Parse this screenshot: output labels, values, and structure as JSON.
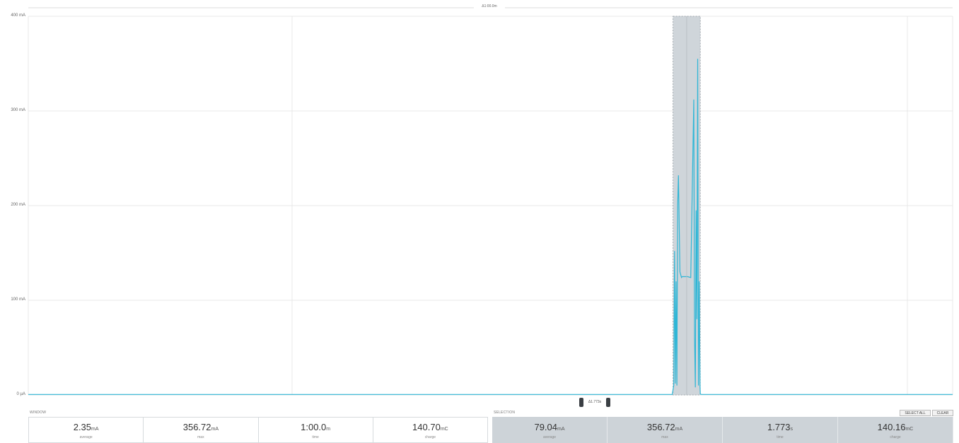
{
  "chart": {
    "top_delta": "Δ1:00.0m",
    "selection_delta": "Δ1.773s",
    "y_ticks": [
      {
        "label": "400 mA",
        "value": 400
      },
      {
        "label": "300 mA",
        "value": 300
      },
      {
        "label": "200 mA",
        "value": 200
      },
      {
        "label": "100 mA",
        "value": 100
      },
      {
        "label": "0 µA",
        "value": 0
      }
    ],
    "colors": {
      "trace": "#2fb6d6",
      "selection_fill": "#cfd5da",
      "grid": "#e8e8e8"
    }
  },
  "chart_data": {
    "type": "line",
    "ylim": [
      0,
      400
    ],
    "y_unit": "mA",
    "xlim_seconds": [
      0,
      60
    ],
    "selection_seconds": [
      41.85,
      43.62
    ],
    "series": [
      {
        "x": [
          0,
          41.8,
          41.9,
          41.95,
          42.0,
          42.05,
          42.1,
          42.15,
          42.2,
          42.3,
          42.4,
          42.45,
          42.5,
          42.6,
          42.8,
          43.0,
          43.2,
          43.25,
          43.3,
          43.35,
          43.4,
          43.45,
          43.5,
          43.55,
          43.6,
          43.62,
          43.7,
          60
        ],
        "y": [
          0.5,
          0.5,
          10,
          152,
          12,
          120,
          10,
          200,
          232,
          130,
          124,
          125,
          125,
          125,
          125,
          124,
          312,
          60,
          8,
          195,
          80,
          355,
          10,
          120,
          10,
          1,
          0.5,
          0.5
        ]
      }
    ]
  },
  "window": {
    "label": "WINDOW",
    "stats": [
      {
        "value": "2.35",
        "unit": "mA",
        "caption": "average"
      },
      {
        "value": "356.72",
        "unit": "mA",
        "caption": "max"
      },
      {
        "value": "1:00.0",
        "unit": "m",
        "caption": "time"
      },
      {
        "value": "140.70",
        "unit": "mC",
        "caption": "charge"
      }
    ]
  },
  "selection": {
    "label": "SELECTION",
    "select_all_label": "SELECT ALL",
    "clear_label": "CLEAR",
    "stats": [
      {
        "value": "79.04",
        "unit": "mA",
        "caption": "average"
      },
      {
        "value": "356.72",
        "unit": "mA",
        "caption": "max"
      },
      {
        "value": "1.773",
        "unit": "s",
        "caption": "time"
      },
      {
        "value": "140.16",
        "unit": "mC",
        "caption": "charge"
      }
    ]
  }
}
